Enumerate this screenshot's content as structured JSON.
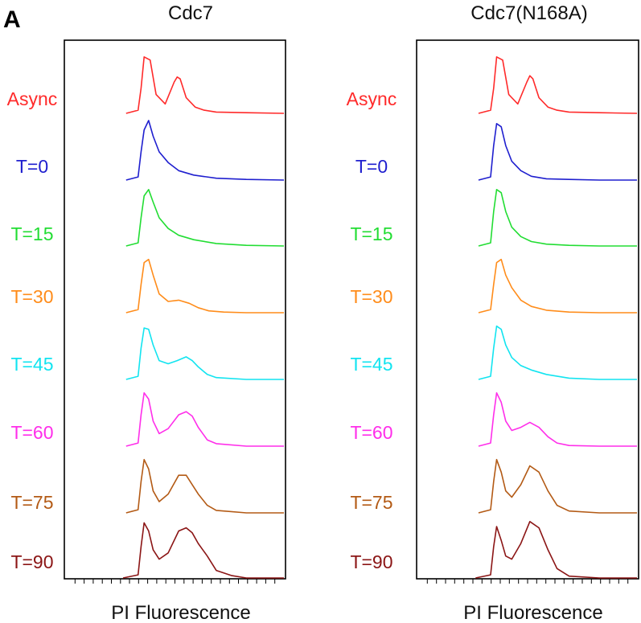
{
  "panel_letter": "A",
  "chart_data": [
    {
      "type": "line",
      "title": "Cdc7",
      "xlabel": "PI Fluorescence",
      "ylabel": "",
      "series": [
        {
          "name": "Async",
          "color": "#ff2a2a",
          "x": [
            40,
            48,
            50,
            52,
            56,
            60,
            66,
            72,
            74,
            76,
            80,
            86,
            92,
            100,
            120,
            145
          ],
          "values": [
            0,
            0.05,
            0.4,
            0.9,
            0.85,
            0.3,
            0.15,
            0.5,
            0.58,
            0.55,
            0.25,
            0.1,
            0.05,
            0.02,
            0.01,
            0
          ]
        },
        {
          "name": "T=0",
          "color": "#1f1fcf",
          "x": [
            40,
            48,
            50,
            52,
            55,
            58,
            62,
            68,
            75,
            85,
            100,
            120,
            145
          ],
          "values": [
            0,
            0.05,
            0.45,
            0.8,
            0.95,
            0.7,
            0.45,
            0.28,
            0.15,
            0.08,
            0.03,
            0.01,
            0
          ]
        },
        {
          "name": "T=15",
          "color": "#22dd33",
          "x": [
            40,
            48,
            50,
            52,
            55,
            58,
            62,
            68,
            75,
            85,
            100,
            120,
            145
          ],
          "values": [
            0,
            0.05,
            0.45,
            0.8,
            0.9,
            0.7,
            0.45,
            0.28,
            0.17,
            0.1,
            0.04,
            0.01,
            0
          ]
        },
        {
          "name": "T=30",
          "color": "#ff8c1a",
          "x": [
            40,
            48,
            50,
            52,
            55,
            58,
            62,
            68,
            75,
            82,
            88,
            95,
            105,
            120,
            145
          ],
          "values": [
            0,
            0.05,
            0.45,
            0.8,
            0.85,
            0.6,
            0.3,
            0.18,
            0.2,
            0.15,
            0.08,
            0.03,
            0.01,
            0,
            0
          ]
        },
        {
          "name": "T=45",
          "color": "#12e4f0",
          "x": [
            40,
            48,
            50,
            52,
            55,
            58,
            62,
            68,
            74,
            80,
            84,
            88,
            94,
            100,
            120,
            145
          ],
          "values": [
            0,
            0.05,
            0.5,
            0.82,
            0.8,
            0.55,
            0.3,
            0.25,
            0.3,
            0.36,
            0.3,
            0.2,
            0.08,
            0.03,
            0,
            0
          ]
        },
        {
          "name": "T=60",
          "color": "#ff2eea",
          "x": [
            40,
            48,
            50,
            52,
            55,
            58,
            62,
            68,
            75,
            80,
            84,
            88,
            94,
            100,
            120,
            145
          ],
          "values": [
            0,
            0.05,
            0.5,
            0.85,
            0.75,
            0.4,
            0.2,
            0.28,
            0.5,
            0.55,
            0.48,
            0.3,
            0.1,
            0.04,
            0,
            0
          ]
        },
        {
          "name": "T=75",
          "color": "#b35a15",
          "x": [
            40,
            48,
            50,
            52,
            55,
            58,
            62,
            68,
            75,
            80,
            84,
            88,
            94,
            100,
            120,
            145
          ],
          "values": [
            0,
            0.05,
            0.5,
            0.85,
            0.7,
            0.35,
            0.18,
            0.3,
            0.6,
            0.6,
            0.45,
            0.3,
            0.12,
            0.04,
            0,
            0
          ]
        },
        {
          "name": "T=90",
          "color": "#8b1515",
          "x": [
            38,
            48,
            50,
            52,
            55,
            58,
            62,
            68,
            75,
            80,
            84,
            88,
            94,
            100,
            110,
            120,
            145
          ],
          "values": [
            0,
            0.05,
            0.5,
            0.88,
            0.75,
            0.45,
            0.3,
            0.4,
            0.75,
            0.8,
            0.72,
            0.55,
            0.35,
            0.12,
            0.04,
            0,
            0
          ]
        }
      ]
    },
    {
      "type": "line",
      "title": "Cdc7(N168A)",
      "xlabel": "PI Fluorescence",
      "ylabel": "",
      "series": [
        {
          "name": "Async",
          "color": "#ff2a2a",
          "x": [
            40,
            48,
            50,
            52,
            56,
            60,
            66,
            72,
            74,
            76,
            80,
            86,
            92,
            100,
            120,
            145
          ],
          "values": [
            0,
            0.05,
            0.4,
            0.9,
            0.85,
            0.3,
            0.15,
            0.5,
            0.6,
            0.55,
            0.25,
            0.1,
            0.05,
            0.02,
            0.01,
            0
          ]
        },
        {
          "name": "T=0",
          "color": "#1f1fcf",
          "x": [
            40,
            48,
            50,
            52,
            55,
            58,
            62,
            68,
            75,
            85,
            100,
            120,
            145
          ],
          "values": [
            0,
            0.05,
            0.55,
            0.9,
            0.85,
            0.55,
            0.3,
            0.15,
            0.06,
            0.02,
            0.01,
            0,
            0
          ]
        },
        {
          "name": "T=15",
          "color": "#22dd33",
          "x": [
            40,
            48,
            50,
            52,
            55,
            58,
            62,
            68,
            75,
            85,
            100,
            120,
            145
          ],
          "values": [
            0,
            0.05,
            0.55,
            0.9,
            0.85,
            0.55,
            0.3,
            0.15,
            0.07,
            0.03,
            0.01,
            0,
            0
          ]
        },
        {
          "name": "T=30",
          "color": "#ff8c1a",
          "x": [
            40,
            48,
            50,
            52,
            55,
            58,
            62,
            68,
            75,
            85,
            100,
            120,
            145
          ],
          "values": [
            0,
            0.05,
            0.45,
            0.8,
            0.85,
            0.6,
            0.4,
            0.2,
            0.1,
            0.04,
            0.01,
            0,
            0
          ]
        },
        {
          "name": "T=45",
          "color": "#12e4f0",
          "x": [
            40,
            48,
            50,
            52,
            55,
            58,
            62,
            68,
            75,
            85,
            100,
            120,
            145
          ],
          "values": [
            0,
            0.05,
            0.5,
            0.85,
            0.8,
            0.55,
            0.35,
            0.22,
            0.15,
            0.08,
            0.02,
            0,
            0
          ]
        },
        {
          "name": "T=60",
          "color": "#ff2eea",
          "x": [
            40,
            48,
            50,
            52,
            55,
            58,
            62,
            68,
            74,
            80,
            86,
            92,
            100,
            120,
            145
          ],
          "values": [
            0,
            0.05,
            0.5,
            0.85,
            0.7,
            0.4,
            0.25,
            0.3,
            0.38,
            0.3,
            0.15,
            0.05,
            0.01,
            0,
            0
          ]
        },
        {
          "name": "T=75",
          "color": "#b35a15",
          "x": [
            40,
            48,
            50,
            52,
            55,
            58,
            62,
            68,
            74,
            80,
            86,
            92,
            100,
            120,
            145
          ],
          "values": [
            0,
            0.05,
            0.5,
            0.85,
            0.65,
            0.35,
            0.25,
            0.45,
            0.75,
            0.65,
            0.35,
            0.12,
            0.03,
            0,
            0
          ]
        },
        {
          "name": "T=90",
          "color": "#8b1515",
          "x": [
            38,
            48,
            50,
            52,
            55,
            58,
            62,
            68,
            74,
            80,
            86,
            92,
            100,
            120,
            145
          ],
          "values": [
            0,
            0.05,
            0.5,
            0.82,
            0.6,
            0.35,
            0.3,
            0.55,
            0.9,
            0.8,
            0.45,
            0.15,
            0.03,
            0,
            0
          ]
        }
      ]
    }
  ]
}
